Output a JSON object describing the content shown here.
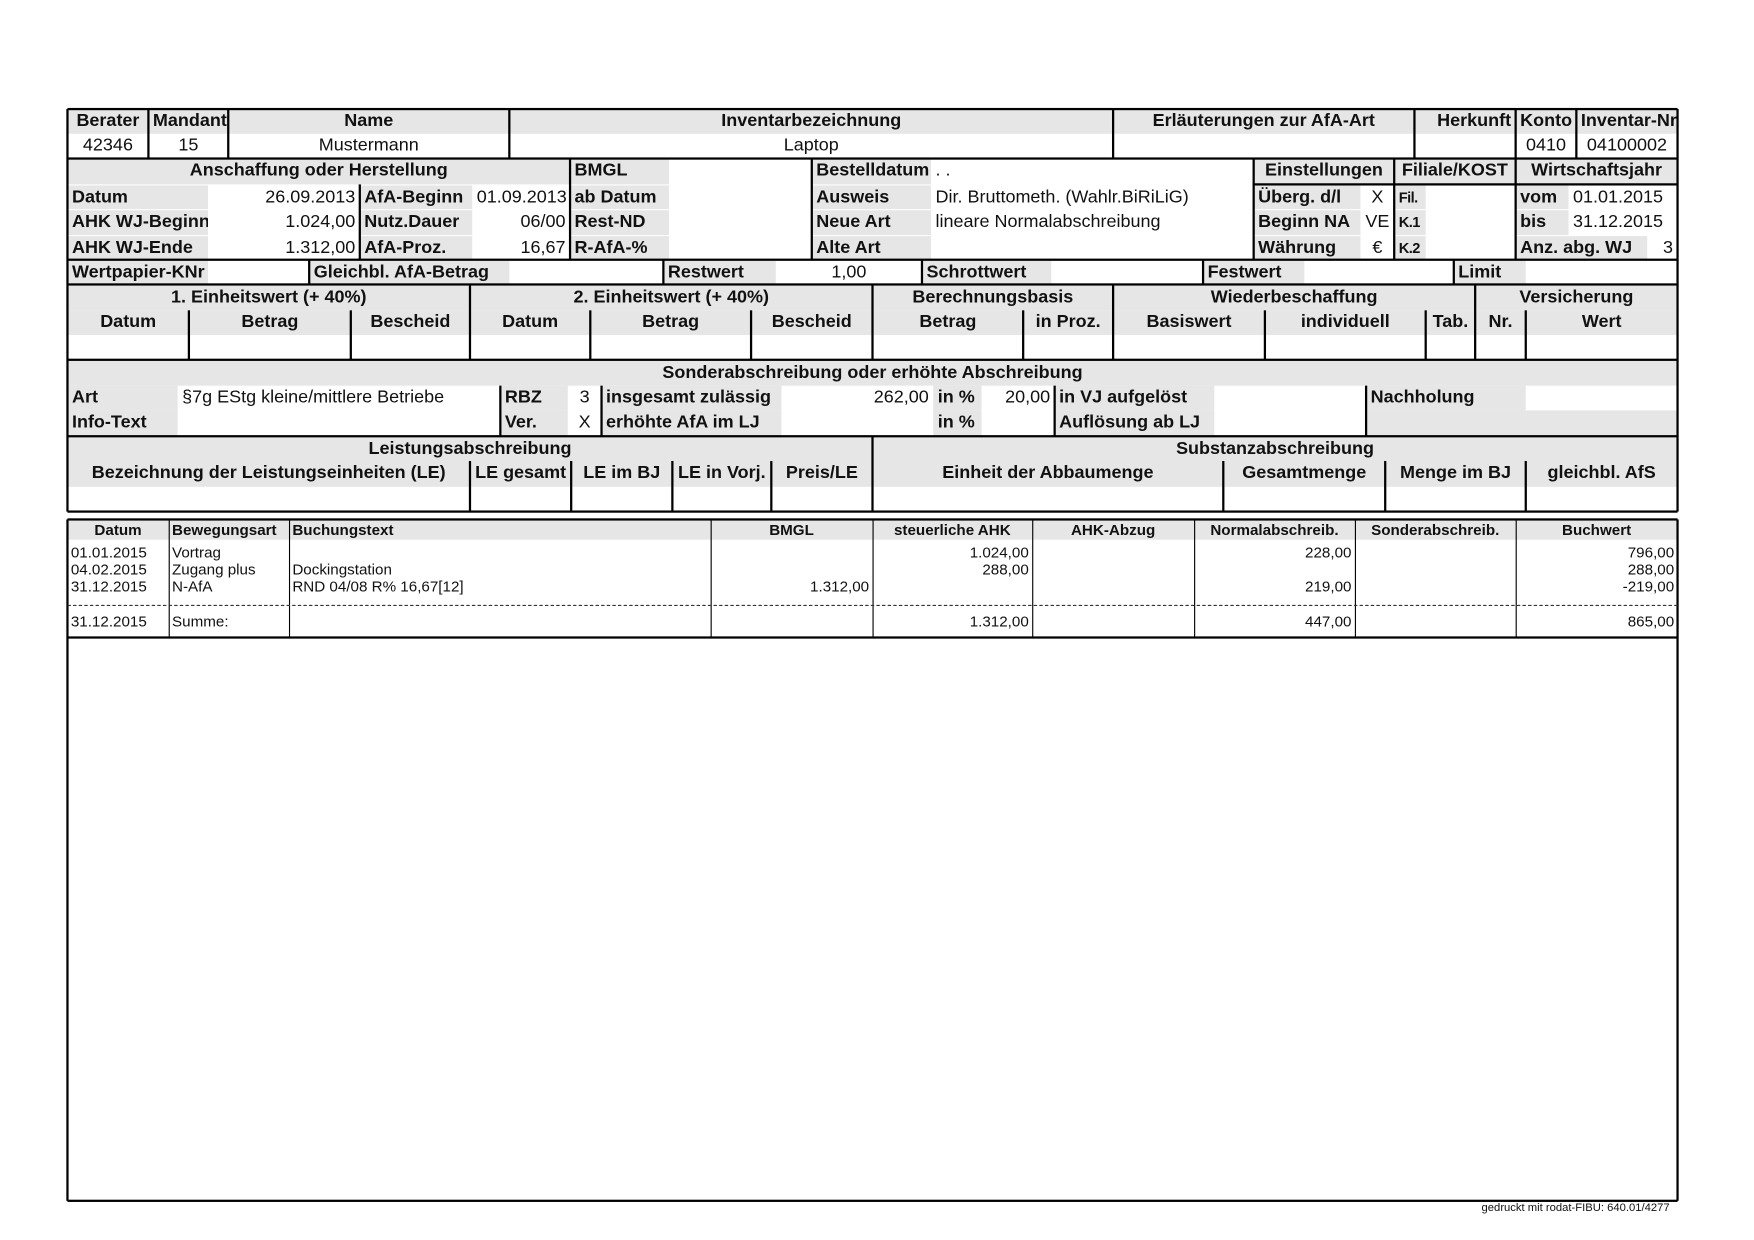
{
  "h": {
    "berater_l": "Berater",
    "berater": "42346",
    "mandant_l": "Mandant",
    "mandant": "15",
    "name_l": "Name",
    "name": "Mustermann",
    "inv_l": "Inventarbezeichnung",
    "inv": "Laptop",
    "erl_l": "Erläuterungen zur AfA-Art",
    "erl": "",
    "herk_l": "Herkunft",
    "herk": "",
    "konto_l": "Konto",
    "konto": "0410",
    "invnr_l": "Inventar-Nr.",
    "invnr": "04100002"
  },
  "a": {
    "title": "Anschaffung oder Herstellung",
    "bmgl_l": "BMGL",
    "best_l": "Bestelldatum",
    "best": ". .",
    "einst_l": "Einstellungen",
    "fil_l": "Filiale/KOST",
    "wj_l": "Wirtschaftsjahr",
    "rows": [
      {
        "l1": "Datum",
        "v1": "26.09.2013",
        "l2": "AfA-Beginn",
        "v2": "01.09.2013",
        "l3": "ab Datum",
        "v3": "",
        "l4": "Ausweis",
        "v4": "Dir. Bruttometh. (Wahlr.BiRiLiG)",
        "l5": "Überg. d/l",
        "v5": "X",
        "l6": "Fil.",
        "v6": "",
        "l7": "vom",
        "v7": "01.01.2015"
      },
      {
        "l1": "AHK WJ-Beginn",
        "v1": "1.024,00",
        "l2": "Nutz.Dauer",
        "v2": "06/00",
        "l3": "Rest-ND",
        "v3": "",
        "l4": "Neue Art",
        "v4": "lineare Normalabschreibung",
        "l5": "Beginn NA",
        "v5": "VE",
        "l6": "K.1",
        "v6": "",
        "l7": "bis",
        "v7": "31.12.2015"
      },
      {
        "l1": "AHK WJ-Ende",
        "v1": "1.312,00",
        "l2": "AfA-Proz.",
        "v2": "16,67",
        "l3": "R-AfA-%",
        "v3": "",
        "l4": "Alte Art",
        "v4": "",
        "l5": "Währung",
        "v5": "€",
        "l6": "K.2",
        "v6": "",
        "l7": "Anz. abg. WJ",
        "v7": "3"
      }
    ]
  },
  "w": {
    "knr_l": "Wertpapier-KNr",
    "knr": "",
    "gleich_l": "Gleichbl. AfA-Betrag",
    "gleich": "",
    "rest_l": "Restwert",
    "rest": "1,00",
    "schrott_l": "Schrottwert",
    "schrott": "",
    "fest_l": "Festwert",
    "fest": "",
    "limit_l": "Limit",
    "limit": ""
  },
  "e": {
    "t1": "1. Einheitswert (+ 40%)",
    "t2": "2. Einheitswert (+ 40%)",
    "t3": "Berechnungsbasis",
    "t4": "Wiederbeschaffung",
    "t5": "Versicherung",
    "cols": [
      "Datum",
      "Betrag",
      "Bescheid",
      "Datum",
      "Betrag",
      "Bescheid",
      "Betrag",
      "in Proz.",
      "Basiswert",
      "individuell",
      "Tab.",
      "Nr.",
      "Wert"
    ]
  },
  "s": {
    "title": "Sonderabschreibung oder erhöhte Abschreibung",
    "r1": {
      "art_l": "Art",
      "art": "§7g EStg kleine/mittlere Betriebe",
      "rbz_l": "RBZ",
      "rbz": "3",
      "ges_l": "insgesamt zulässig",
      "ges": "262,00",
      "inp_l": "in %",
      "inp": "20,00",
      "vj_l": "in VJ aufgelöst",
      "vj": "",
      "nach_l": "Nachholung",
      "nach": ""
    },
    "r2": {
      "info_l": "Info-Text",
      "info": "",
      "ver_l": "Ver.",
      "ver": "X",
      "erh_l": "erhöhte AfA im LJ",
      "erh": "",
      "inp_l": "in %",
      "inp": "",
      "aufl_l": "Auflösung ab LJ",
      "aufl": ""
    }
  },
  "l": {
    "t1": "Leistungsabschreibung",
    "t2": "Substanzabschreibung",
    "cols": [
      "Bezeichnung der Leistungseinheiten (LE)",
      "LE gesamt",
      "LE im BJ",
      "LE in Vorj.",
      "Preis/LE",
      "Einheit der Abbaumenge",
      "Gesamtmenge",
      "Menge im BJ",
      "gleichbl. AfS"
    ]
  },
  "b": {
    "headers": [
      "Datum",
      "Bewegungsart",
      "Buchungstext",
      "BMGL",
      "steuerliche AHK",
      "AHK-Abzug",
      "Normalabschreib.",
      "Sonderabschreib.",
      "Buchwert"
    ],
    "rows": [
      [
        "01.01.2015",
        "Vortrag",
        "",
        "",
        "1.024,00",
        "",
        "228,00",
        "",
        "796,00"
      ],
      [
        "04.02.2015",
        "Zugang plus",
        "Dockingstation",
        "",
        "288,00",
        "",
        "",
        "",
        "288,00"
      ],
      [
        "31.12.2015",
        "N-AfA",
        "RND 04/08 R% 16,67[12]",
        "1.312,00",
        "",
        "",
        "219,00",
        "",
        "-219,00"
      ]
    ],
    "sum": [
      "31.12.2015",
      "Summe:",
      "",
      "",
      "1.312,00",
      "",
      "447,00",
      "",
      "865,00"
    ]
  },
  "footer": "gedruckt mit rodat-FIBU: 640.01/4277"
}
